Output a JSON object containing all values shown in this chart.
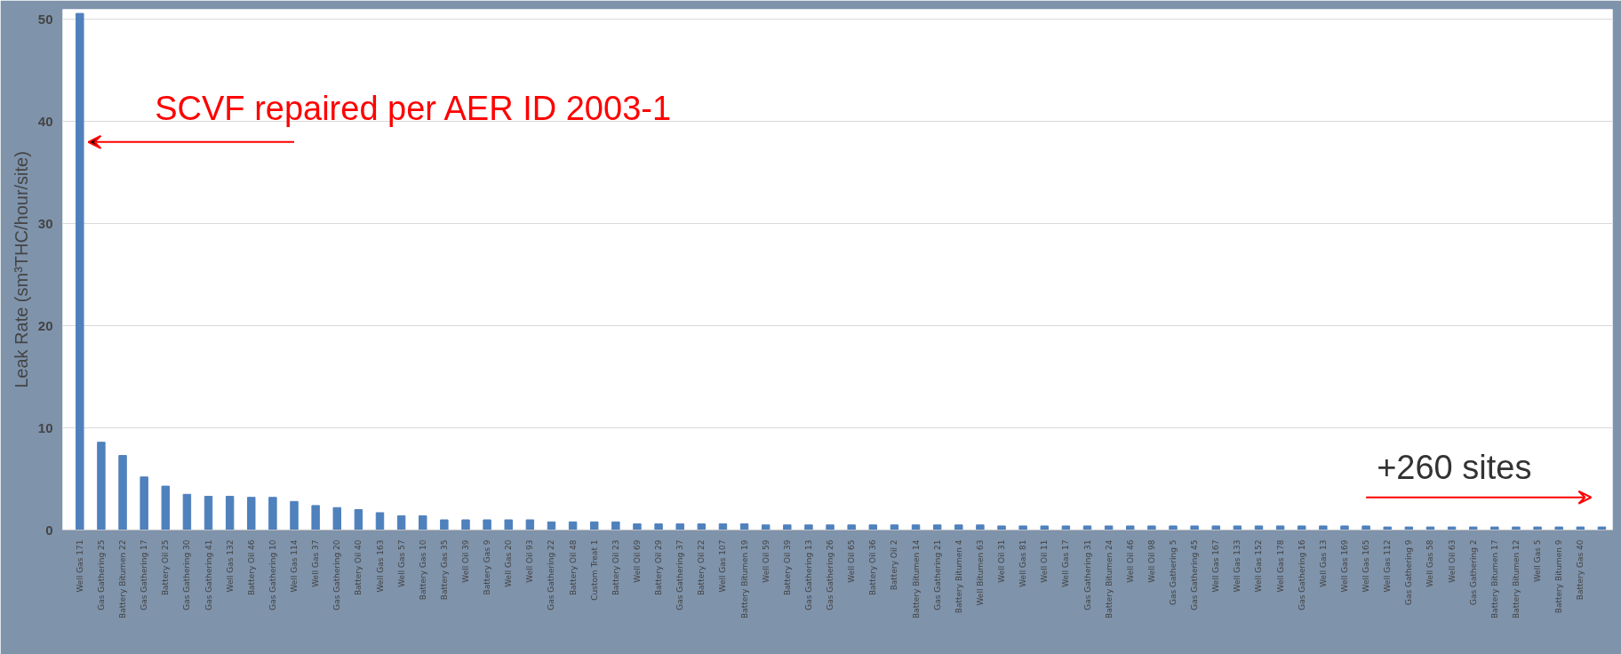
{
  "chart_data": {
    "type": "bar",
    "ylabel": "Leak Rate (sm³THC/hour/site)",
    "color": "#4f81bd",
    "ylim": [
      0,
      51
    ],
    "yticks": [
      0,
      10,
      20,
      30,
      40,
      50
    ],
    "grid": "y",
    "categories": [
      "Well Gas 171",
      "Gas Gathering 25",
      "Battery Bitumen 22",
      "Gas Gathering 17",
      "Battery Oil 25",
      "Gas Gathering 30",
      "Gas Gathering 41",
      "Well Gas 132",
      "Battery Oil 46",
      "Gas Gathering 10",
      "Well Gas 114",
      "Well Gas 37",
      "Gas Gathering 20",
      "Battery Oil 40",
      "Well Gas 163",
      "Well Gas 57",
      "Battery Gas 10",
      "Battery Gas 35",
      "Well Oil 39",
      "Battery Gas 9",
      "Well Gas 20",
      "Well Oil 93",
      "Gas Gathering 22",
      "Battery Oil 48",
      "Custom Treat 1",
      "Battery Oil 23",
      "Well Oil 69",
      "Battery Oil 29",
      "Gas Gathering 37",
      "Battery Oil 22",
      "Well Gas 107",
      "Battery Bitumen 19",
      "Well Oil 59",
      "Battery Oil 39",
      "Gas Gathering 13",
      "Gas Gathering 26",
      "Well Oil 65",
      "Battery Oil 36",
      "Battery Oil 2",
      "Battery Bitumen 14",
      "Gas Gathering 21",
      "Battery Bitumen 4",
      "Well Bitumen 63",
      "Well Oil 31",
      "Well Gas 81",
      "Well Oil 11",
      "Well Gas 17",
      "Gas Gathering 31",
      "Battery Bitumen 24",
      "Well Oil 46",
      "Well Oil 98",
      "Gas Gathering 5",
      "Gas Gathering 45",
      "Well Gas 167",
      "Well Gas 133",
      "Well Gas 152",
      "Well Gas 178",
      "Gas Gathering 16",
      "Well Gas 13",
      "Well Gas 169",
      "Well Gas 165",
      "Well Gas 112",
      "Gas Gathering 9",
      "Well Gas 58",
      "Well Oil 63",
      "Gas Gathering 2",
      "Battery Bitumen 17",
      "Battery Bitumen 12",
      "Well Gas 5",
      "Battery Bitumen 9",
      "Battery Gas 40",
      null
    ],
    "values": [
      50.6,
      8.6,
      7.3,
      5.2,
      4.3,
      3.5,
      3.3,
      3.3,
      3.2,
      3.2,
      2.8,
      2.4,
      2.2,
      2.0,
      1.7,
      1.4,
      1.4,
      1.0,
      1.0,
      1.0,
      1.0,
      1.0,
      0.8,
      0.8,
      0.8,
      0.8,
      0.6,
      0.6,
      0.6,
      0.6,
      0.6,
      0.6,
      0.5,
      0.5,
      0.5,
      0.5,
      0.5,
      0.5,
      0.5,
      0.5,
      0.5,
      0.5,
      0.5,
      0.4,
      0.4,
      0.4,
      0.4,
      0.4,
      0.4,
      0.4,
      0.4,
      0.4,
      0.4,
      0.4,
      0.4,
      0.4,
      0.4,
      0.4,
      0.4,
      0.4,
      0.4,
      0.3,
      0.3,
      0.3,
      0.3,
      0.3,
      0.3,
      0.3,
      0.3,
      0.3,
      0.3,
      0.3
    ],
    "annotations": [
      {
        "text": "SCVF repaired per AER ID 2003-1",
        "x": "Well Gas 171",
        "y": 38
      },
      "+260 sites"
    ]
  }
}
